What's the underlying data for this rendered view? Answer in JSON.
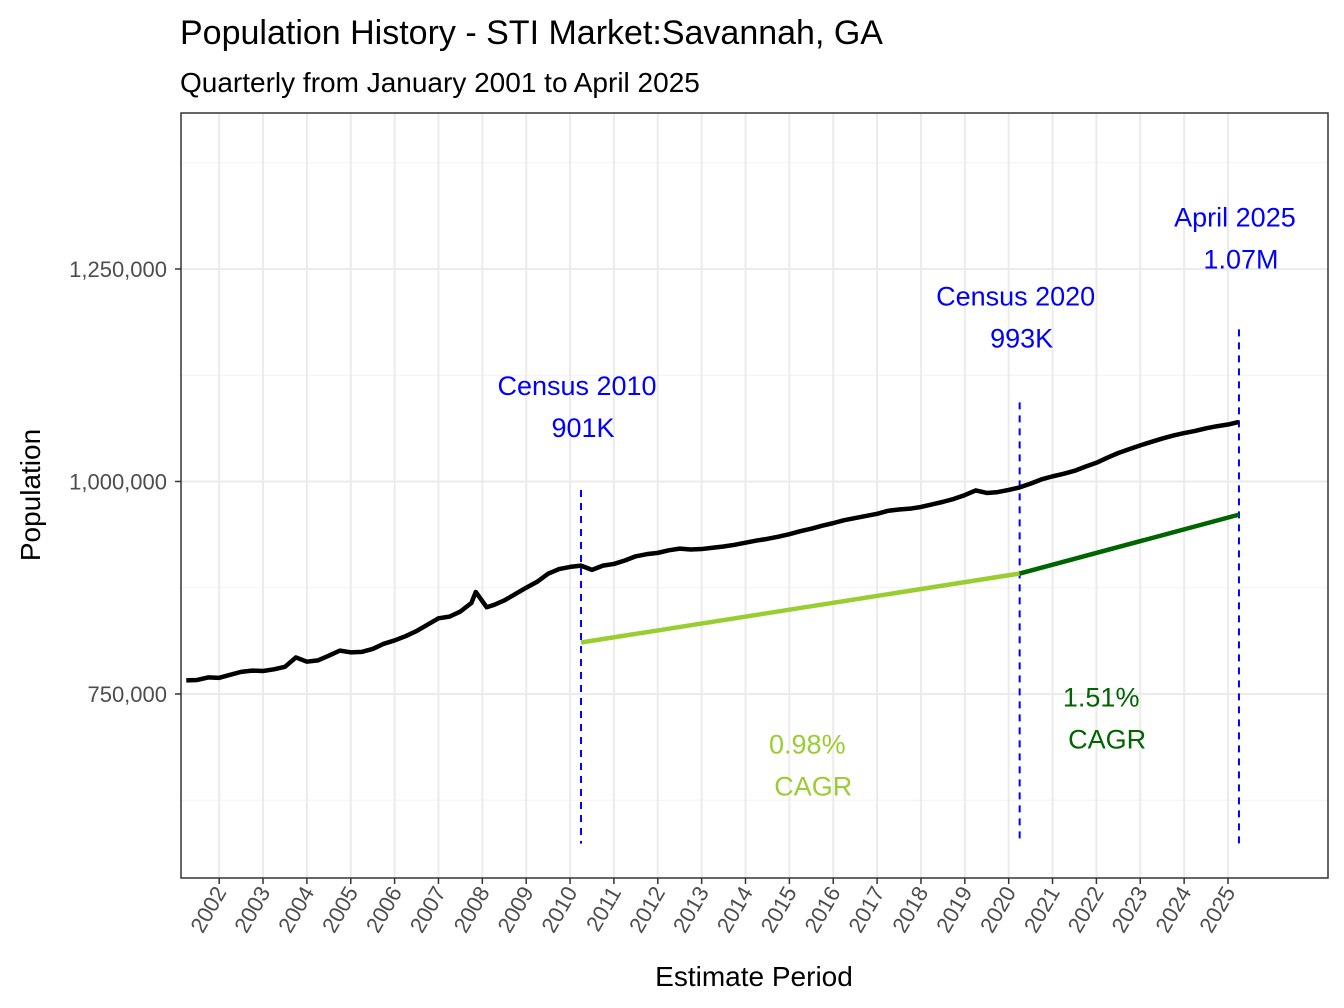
{
  "chart_data": {
    "type": "line",
    "title": "Population History - STI Market:Savannah, GA",
    "subtitle": "Quarterly from January 2001 to April 2025",
    "xlabel": "Estimate Period",
    "ylabel": "Population",
    "xlim": [
      2001.13,
      2027.28
    ],
    "ylim": [
      533500,
      1433500
    ],
    "grid": true,
    "x_ticks": [
      2002,
      2003,
      2004,
      2005,
      2006,
      2007,
      2008,
      2009,
      2010,
      2011,
      2012,
      2013,
      2014,
      2015,
      2016,
      2017,
      2018,
      2019,
      2020,
      2021,
      2022,
      2023,
      2024,
      2025
    ],
    "y_ticks": [
      {
        "value": 750000,
        "label": "750,000"
      },
      {
        "value": 1000000,
        "label": "1,000,000"
      },
      {
        "value": 1250000,
        "label": "1,250,000"
      }
    ],
    "y_minor": [
      625000,
      875000,
      1125000,
      1375000
    ],
    "series": [
      {
        "color": "#000000",
        "x": [
          2001.25,
          2001.5,
          2001.75,
          2002.0,
          2002.25,
          2002.5,
          2002.75,
          2003.0,
          2003.25,
          2003.5,
          2003.75,
          2004.0,
          2004.25,
          2004.5,
          2004.75,
          2005.0,
          2005.25,
          2005.5,
          2005.75,
          2006.0,
          2006.25,
          2006.5,
          2006.75,
          2007.0,
          2007.25,
          2007.5,
          2007.75,
          2007.85,
          2008.1,
          2008.25,
          2008.5,
          2008.75,
          2009.0,
          2009.25,
          2009.5,
          2009.75,
          2010.0,
          2010.25,
          2010.5,
          2010.75,
          2011.0,
          2011.25,
          2011.5,
          2011.75,
          2012.0,
          2012.25,
          2012.5,
          2012.75,
          2013.0,
          2013.25,
          2013.5,
          2013.75,
          2014.0,
          2014.25,
          2014.5,
          2014.75,
          2015.0,
          2015.25,
          2015.5,
          2015.75,
          2016.0,
          2016.25,
          2016.5,
          2016.75,
          2017.0,
          2017.25,
          2017.5,
          2017.75,
          2018.0,
          2018.25,
          2018.5,
          2018.75,
          2019.0,
          2019.25,
          2019.5,
          2019.75,
          2020.0,
          2020.25,
          2020.5,
          2020.75,
          2021.0,
          2021.25,
          2021.5,
          2021.75,
          2022.0,
          2022.25,
          2022.5,
          2022.75,
          2023.0,
          2023.25,
          2023.5,
          2023.75,
          2024.0,
          2024.25,
          2024.5,
          2024.75,
          2025.0,
          2025.25
        ],
        "values": [
          766000,
          766500,
          769500,
          769000,
          772500,
          776000,
          777500,
          777000,
          779000,
          782000,
          793000,
          788000,
          789500,
          795000,
          801000,
          799000,
          799500,
          803000,
          809000,
          813000,
          818000,
          824000,
          831500,
          839000,
          841000,
          847000,
          857000,
          870000,
          852000,
          854500,
          860000,
          867500,
          875000,
          882000,
          891500,
          897000,
          899500,
          901000,
          896000,
          901000,
          903000,
          907000,
          912000,
          914500,
          916000,
          919000,
          921000,
          920000,
          920500,
          922000,
          923500,
          925500,
          928000,
          930500,
          932500,
          935000,
          938000,
          941500,
          944500,
          948000,
          951000,
          954500,
          957000,
          959500,
          962000,
          965500,
          967000,
          968000,
          970000,
          973000,
          976000,
          979500,
          984000,
          989500,
          986500,
          987500,
          990000,
          993000,
          997500,
          1002500,
          1006000,
          1009000,
          1012500,
          1017500,
          1022000,
          1028000,
          1033500,
          1038000,
          1042500,
          1046500,
          1050500,
          1054000,
          1057000,
          1059500,
          1062500,
          1065000,
          1067000,
          1070000
        ]
      }
    ],
    "cagr_segments": [
      {
        "x": [
          2010.25,
          2020.25
        ],
        "values": [
          810600,
          891700
        ],
        "color": "#9ACD32"
      },
      {
        "x": [
          2020.25,
          2025.25
        ],
        "values": [
          891700,
          961000
        ],
        "color": "#006400"
      }
    ],
    "reference_lines": [
      {
        "x": 2010.25,
        "y_range": [
          574000,
          990000
        ],
        "color": "#0000FF"
      },
      {
        "x": 2020.25,
        "y_range": [
          574000,
          1093000
        ],
        "color": "#0000FF"
      },
      {
        "x": 2025.25,
        "y_range": [
          574000,
          1179000
        ],
        "color": "#0000FF"
      }
    ],
    "annotations": [
      {
        "line1": "Census 2010",
        "line2": "901K",
        "x": 2010.25,
        "y": 1102000,
        "color": "#0000FF"
      },
      {
        "line1": "Census 2020",
        "line2": "993K",
        "x": 2020.25,
        "y": 1207000,
        "color": "#0000FF"
      },
      {
        "line1": "April 2025",
        "line2": "1.07M",
        "x": 2025.25,
        "y": 1300000,
        "color": "#0000FF"
      },
      {
        "line1": "0.98%",
        "line2": "CAGR",
        "x": 2015.5,
        "y": 680000,
        "color": "#9ACD32"
      },
      {
        "line1": "1.51%",
        "line2": "CAGR",
        "x": 2022.2,
        "y": 735000,
        "color": "#006400"
      }
    ]
  }
}
